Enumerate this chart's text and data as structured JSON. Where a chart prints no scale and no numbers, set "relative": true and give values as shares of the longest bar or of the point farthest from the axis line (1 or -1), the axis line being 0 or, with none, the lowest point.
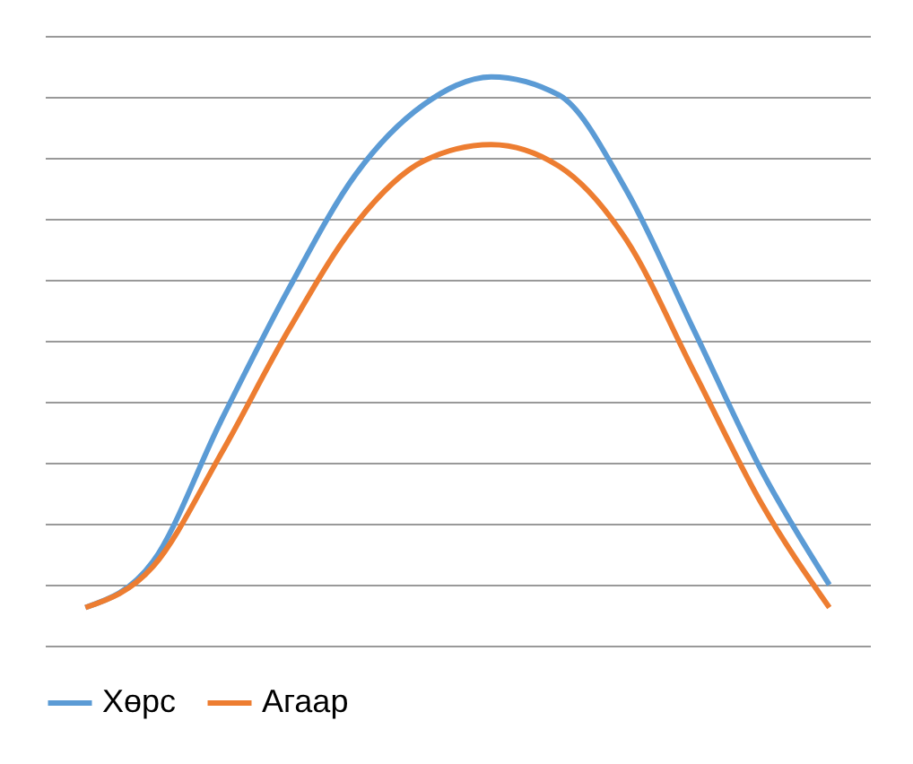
{
  "chart_data": {
    "type": "line",
    "relative": true,
    "categories": [
      null,
      null,
      null,
      null,
      null,
      null,
      null,
      null,
      null,
      null,
      null,
      null
    ],
    "series": [
      {
        "name": "Хөрс",
        "color": "#5b9bd5",
        "values": [
          0.067,
          0.148,
          0.394,
          0.626,
          0.829,
          0.951,
          1.0,
          0.968,
          0.8,
          0.554,
          0.307,
          0.107
        ]
      },
      {
        "name": "Агаар",
        "color": "#ed7d31",
        "values": [
          0.067,
          0.139,
          0.336,
          0.554,
          0.742,
          0.852,
          0.881,
          0.843,
          0.713,
          0.481,
          0.249,
          0.067
        ]
      }
    ],
    "grid": "y",
    "legend": "bottom",
    "marker": "none",
    "line_style": "solid"
  }
}
